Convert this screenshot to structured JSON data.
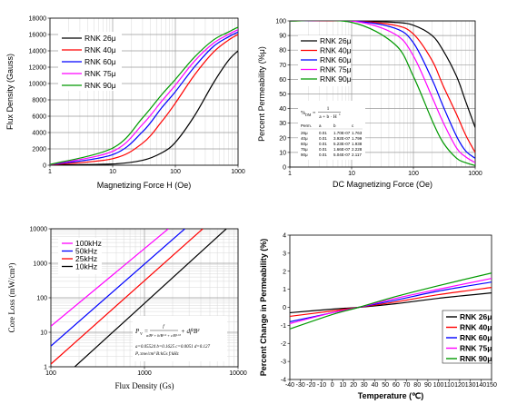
{
  "chart_data": [
    {
      "type": "line",
      "x_scale": "log",
      "xlim": [
        1,
        1000
      ],
      "ylim": [
        0,
        18000
      ],
      "xlabel": "Magnetizing Force H (Oe)",
      "ylabel": "Flux Density (Gauss)",
      "x_ticks": [
        "1",
        "10",
        "100",
        "1000"
      ],
      "y_ticks": [
        "0",
        "2000",
        "4000",
        "6000",
        "8000",
        "10000",
        "12000",
        "14000",
        "16000",
        "18000"
      ],
      "grid": true,
      "legend_position": "top-left",
      "series": [
        {
          "name": "RNK 26μ",
          "color": "#000000",
          "x": [
            1,
            10,
            30,
            60,
            100,
            200,
            400,
            700,
            1000
          ],
          "y": [
            25,
            150,
            600,
            1500,
            2800,
            6000,
            10000,
            12800,
            14000
          ]
        },
        {
          "name": "RNK 40μ",
          "color": "#ff0000",
          "x": [
            1,
            10,
            30,
            60,
            100,
            200,
            400,
            700,
            1000
          ],
          "y": [
            40,
            800,
            2700,
            5300,
            7600,
            11000,
            13800,
            15300,
            16000
          ]
        },
        {
          "name": "RNK 60μ",
          "color": "#0000ff",
          "x": [
            1,
            10,
            30,
            60,
            100,
            200,
            400,
            700,
            1000
          ],
          "y": [
            60,
            1300,
            4100,
            7000,
            9000,
            12000,
            14500,
            15700,
            16300
          ]
        },
        {
          "name": "RNK 75μ",
          "color": "#ff00ff",
          "x": [
            1,
            10,
            30,
            60,
            100,
            200,
            400,
            700,
            1000
          ],
          "y": [
            75,
            1700,
            5000,
            7800,
            9800,
            12700,
            14900,
            16000,
            16600
          ]
        },
        {
          "name": "RNK 90μ",
          "color": "#009900",
          "x": [
            1,
            10,
            30,
            60,
            100,
            200,
            400,
            700,
            1000
          ],
          "y": [
            90,
            2100,
            5800,
            8600,
            10500,
            13200,
            15300,
            16300,
            16900
          ]
        }
      ]
    },
    {
      "type": "line",
      "x_scale": "log",
      "xlim": [
        1,
        1000
      ],
      "ylim": [
        0,
        100
      ],
      "xlabel": "DC Magnetizing Force (Oe)",
      "ylabel": "Percent Permeability (%μ)",
      "x_ticks": [
        "1",
        "10",
        "100",
        "1000"
      ],
      "y_ticks": [
        "0",
        "10",
        "20",
        "30",
        "40",
        "50",
        "60",
        "70",
        "80",
        "90",
        "100"
      ],
      "grid": true,
      "legend_position": "top-left",
      "formula": "%μ = 1/(a + b·H^c)",
      "formula_lead": "%",
      "formula_sub": "DM",
      "formula_eq": "=",
      "formula_num": "1",
      "formula_den": "a + b · H",
      "formula_exp": "c",
      "table": {
        "headers": [
          "Perm.",
          "a",
          "b",
          "c"
        ],
        "rows": [
          [
            "26μ",
            "0.01",
            "1.70E-07",
            "1.763"
          ],
          [
            "40μ",
            "0.01",
            "3.92E-07",
            "1.799"
          ],
          [
            "60μ",
            "0.01",
            "5.23E-07",
            "1.938"
          ],
          [
            "75μ",
            "0.01",
            "1.66E-07",
            "2.228"
          ],
          [
            "90μ",
            "0.01",
            "5.04E-07",
            "2.117"
          ]
        ]
      },
      "series": [
        {
          "name": "RNK 26μ",
          "color": "#000000",
          "x": [
            1,
            10,
            50,
            100,
            200,
            300,
            500,
            700,
            1000
          ],
          "y": [
            100,
            100,
            99,
            97,
            90,
            80,
            62,
            45,
            27
          ]
        },
        {
          "name": "RNK 40μ",
          "color": "#ff0000",
          "x": [
            1,
            10,
            50,
            100,
            200,
            300,
            500,
            700,
            1000
          ],
          "y": [
            100,
            100,
            97,
            91,
            73,
            56,
            36,
            22,
            10
          ]
        },
        {
          "name": "RNK 60μ",
          "color": "#0000ff",
          "x": [
            1,
            10,
            50,
            100,
            200,
            300,
            500,
            700,
            1000
          ],
          "y": [
            100,
            100,
            95,
            85,
            60,
            42,
            21,
            11,
            6
          ]
        },
        {
          "name": "RNK 75μ",
          "color": "#ff00ff",
          "x": [
            1,
            10,
            50,
            100,
            200,
            300,
            500,
            700,
            1000
          ],
          "y": [
            100,
            100,
            91,
            76,
            48,
            31,
            13,
            7,
            3
          ]
        },
        {
          "name": "RNK 90μ",
          "color": "#009900",
          "x": [
            1,
            10,
            50,
            100,
            200,
            300,
            500,
            700,
            1000
          ],
          "y": [
            100,
            99,
            84,
            62,
            32,
            17,
            6,
            3,
            1
          ]
        }
      ]
    },
    {
      "type": "line",
      "x_scale": "log",
      "y_scale": "log",
      "xlim": [
        100,
        10000
      ],
      "ylim": [
        1,
        10000
      ],
      "xlabel": "Flux Density  (Gs)",
      "ylabel": "Core Loss  (mW/cm³)",
      "x_ticks": [
        "100",
        "1000",
        "10000"
      ],
      "y_ticks": [
        "1",
        "10",
        "100",
        "1000",
        "10000"
      ],
      "grid": true,
      "legend_position": "top-left",
      "formula": "Pv = f / (a/B³ + b/B^2.3 + c/B^1.65) + d·f²·B²",
      "formula_lhs": "P",
      "formula_lhs_sub": "V",
      "formula_eq": "=",
      "formula_num": "f",
      "formula_den": "a/B³ + b/B²·³ + c/B¹·⁶⁵",
      "formula_tail": "+ df²B²",
      "params_text": "a=0.05524  b=0.1625  c=0.0051  d=0.127",
      "units_text": "Pᵥ:mw/cm³  B:kGs  f:kHz",
      "series": [
        {
          "name": "100kHz",
          "color": "#ff00ff",
          "x": [
            100,
            1800
          ],
          "y": [
            15,
            10000
          ]
        },
        {
          "name": "50kHz",
          "color": "#0000ff",
          "x": [
            100,
            2700
          ],
          "y": [
            4,
            10000
          ]
        },
        {
          "name": "25kHz",
          "color": "#ff0000",
          "x": [
            100,
            4200
          ],
          "y": [
            1.2,
            10000
          ]
        },
        {
          "name": "10kHz",
          "color": "#000000",
          "x": [
            180,
            7500
          ],
          "y": [
            1,
            10000
          ]
        }
      ]
    },
    {
      "type": "line",
      "xlim": [
        -40,
        150
      ],
      "ylim": [
        -4,
        4
      ],
      "xlabel": "Temperature (℃)",
      "ylabel": "Percent Change in Permeability (%)",
      "x_ticks": [
        "-40",
        "-30",
        "-20",
        "-10",
        "0",
        "10",
        "20",
        "30",
        "40",
        "50",
        "60",
        "70",
        "80",
        "90",
        "100",
        "110",
        "120",
        "130",
        "140",
        "150"
      ],
      "y_ticks": [
        "-4",
        "-3",
        "-2",
        "-1",
        "0",
        "1",
        "2",
        "3",
        "4"
      ],
      "grid": false,
      "legend_position": "bottom-right",
      "series": [
        {
          "name": "RNK 26μ",
          "color": "#000000",
          "x": [
            -40,
            0,
            25,
            60,
            100,
            150
          ],
          "y": [
            -0.3,
            -0.1,
            0,
            0.2,
            0.5,
            0.8
          ]
        },
        {
          "name": "RNK 40μ",
          "color": "#ff0000",
          "x": [
            -40,
            0,
            25,
            60,
            100,
            150
          ],
          "y": [
            -0.5,
            -0.2,
            0,
            0.3,
            0.7,
            1.1
          ]
        },
        {
          "name": "RNK 60μ",
          "color": "#0000ff",
          "x": [
            -40,
            0,
            25,
            60,
            100,
            150
          ],
          "y": [
            -0.8,
            -0.3,
            0,
            0.4,
            0.9,
            1.4
          ]
        },
        {
          "name": "RNK 75μ",
          "color": "#ff00ff",
          "x": [
            -40,
            0,
            25,
            60,
            100,
            150
          ],
          "y": [
            -0.9,
            -0.3,
            0,
            0.5,
            1.0,
            1.6
          ]
        },
        {
          "name": "RNK 90μ",
          "color": "#009900",
          "x": [
            -40,
            0,
            25,
            60,
            100,
            150
          ],
          "y": [
            -1.2,
            -0.4,
            0,
            0.6,
            1.2,
            1.9
          ]
        }
      ]
    }
  ]
}
